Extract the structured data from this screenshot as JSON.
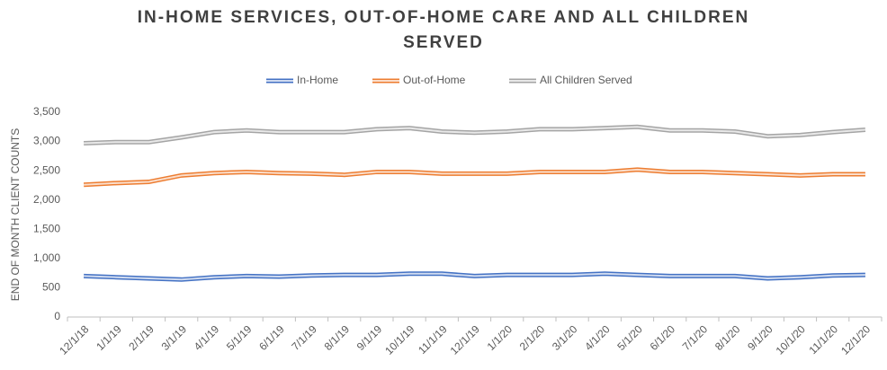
{
  "chart_data": {
    "type": "line",
    "title": "IN-HOME SERVICES, OUT-OF-HOME CARE AND ALL CHILDREN SERVED",
    "y_label": "END OF MONTH CLIENT COUNTS",
    "categories": [
      "12/1/18",
      "1/1/19",
      "2/1/19",
      "3/1/19",
      "4/1/19",
      "5/1/19",
      "6/1/19",
      "7/1/19",
      "8/1/19",
      "9/1/19",
      "10/1/19",
      "11/1/19",
      "12/1/19",
      "1/1/20",
      "2/1/20",
      "3/1/20",
      "4/1/20",
      "5/1/20",
      "6/1/20",
      "7/1/20",
      "8/1/20",
      "9/1/20",
      "10/1/20",
      "11/1/20",
      "12/1/20"
    ],
    "series": [
      {
        "name": "In-Home",
        "color": "#4472c4",
        "values": [
          700,
          680,
          660,
          640,
          680,
          700,
          690,
          710,
          720,
          720,
          740,
          740,
          700,
          720,
          720,
          720,
          740,
          720,
          700,
          700,
          700,
          660,
          680,
          710,
          720
        ]
      },
      {
        "name": "Out-of-Home",
        "color": "#ed7d31",
        "values": [
          2260,
          2290,
          2310,
          2420,
          2460,
          2480,
          2460,
          2450,
          2430,
          2480,
          2480,
          2450,
          2450,
          2450,
          2480,
          2480,
          2480,
          2520,
          2480,
          2480,
          2460,
          2440,
          2420,
          2440,
          2440
        ]
      },
      {
        "name": "All Children Served",
        "color": "#a5a5a5",
        "values": [
          2970,
          2990,
          2990,
          3070,
          3160,
          3190,
          3160,
          3160,
          3160,
          3210,
          3230,
          3170,
          3150,
          3170,
          3210,
          3210,
          3230,
          3250,
          3190,
          3190,
          3170,
          3090,
          3110,
          3160,
          3200
        ]
      }
    ],
    "ylim": [
      0,
      3500
    ],
    "yticks": [
      0,
      500,
      {
        "value": 1000,
        "label": "1,000"
      },
      {
        "value": 1500,
        "label": "1,500"
      },
      {
        "value": 2000,
        "label": "2,000"
      },
      {
        "value": 2500,
        "label": "2,500"
      },
      {
        "value": 3000,
        "label": "3,000"
      },
      {
        "value": 3500,
        "label": "3,500"
      }
    ],
    "grid": false,
    "legend": "top"
  }
}
